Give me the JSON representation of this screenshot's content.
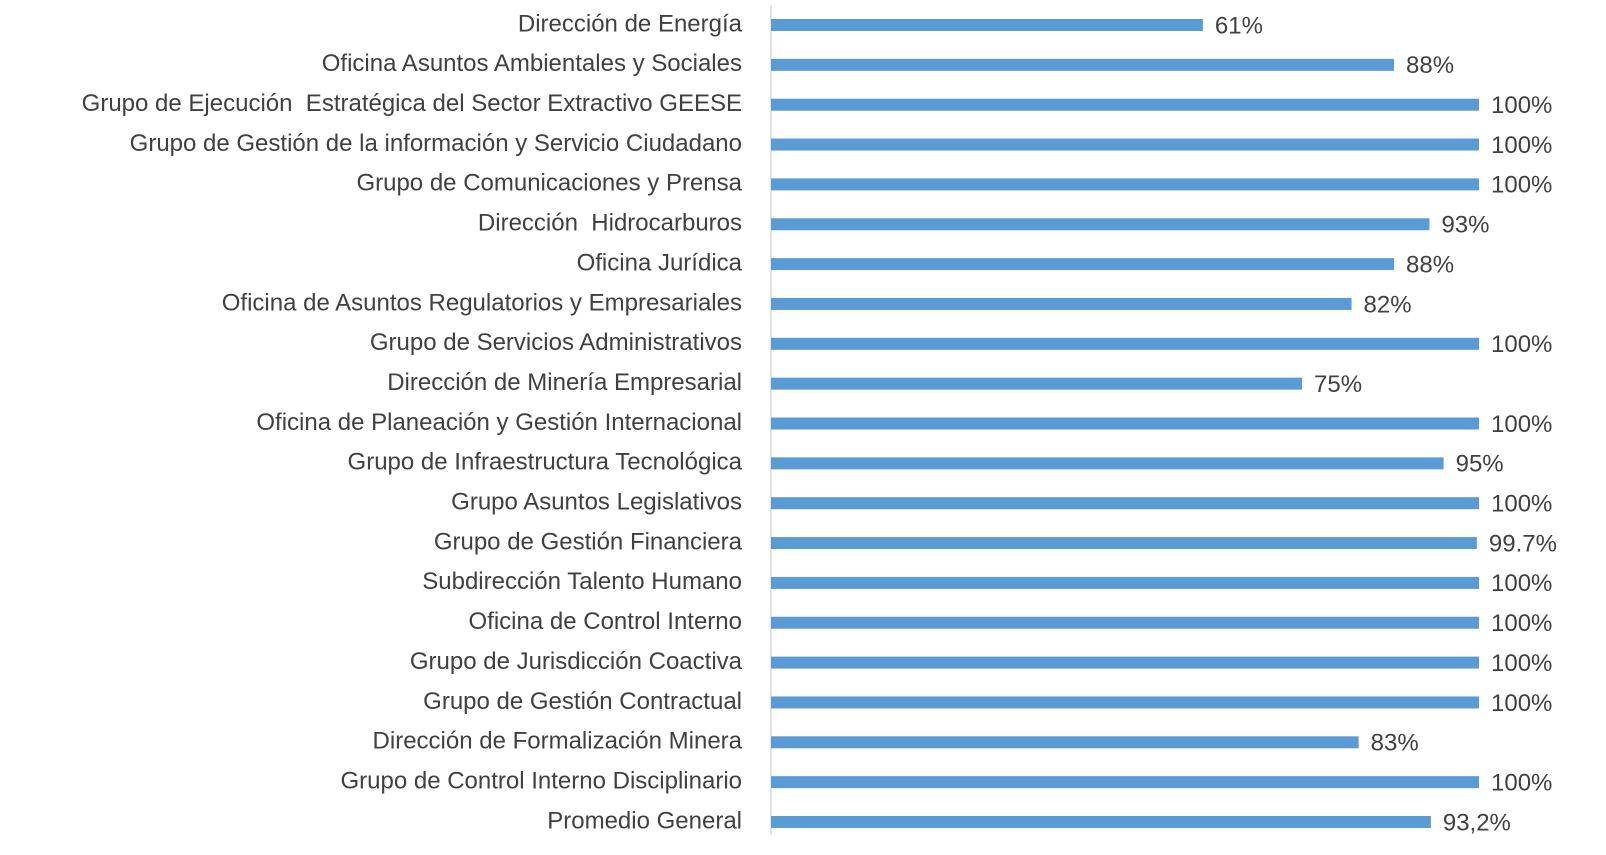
{
  "chart_data": {
    "type": "hbar",
    "color": "#5b9bd5",
    "xlim": [
      0,
      100
    ],
    "categories": [
      "Dirección de Energía",
      "Oficina Asuntos Ambientales y Sociales",
      "Grupo de Ejecución  Estratégica del Sector Extractivo GEESE",
      "Grupo de Gestión de la información y Servicio Ciudadano",
      "Grupo de Comunicaciones y Prensa",
      "Dirección  Hidrocarburos",
      "Oficina Jurídica",
      "Oficina de Asuntos Regulatorios y Empresariales",
      "Grupo de Servicios Administrativos",
      "Dirección de Minería Empresarial",
      "Oficina de Planeación y Gestión Internacional",
      "Grupo de Infraestructura Tecnológica",
      "Grupo Asuntos Legislativos",
      "Grupo de Gestión Financiera",
      "Subdirección Talento Humano",
      "Oficina de Control Interno",
      "Grupo de Jurisdicción Coactiva",
      "Grupo de Gestión Contractual",
      "Dirección de Formalización Minera",
      "Grupo de Control Interno Disciplinario",
      "Promedio General"
    ],
    "values": [
      61,
      88,
      100,
      100,
      100,
      93,
      88,
      82,
      100,
      75,
      100,
      95,
      100,
      99.7,
      100,
      100,
      100,
      100,
      83,
      100,
      93.2
    ],
    "value_labels": [
      "61%",
      "88%",
      "100%",
      "100%",
      "100%",
      "93%",
      "88%",
      "82%",
      "100%",
      "75%",
      "100%",
      "95%",
      "100%",
      "99.7%",
      "100%",
      "100%",
      "100%",
      "100%",
      "83%",
      "100%",
      "93,2%"
    ]
  }
}
